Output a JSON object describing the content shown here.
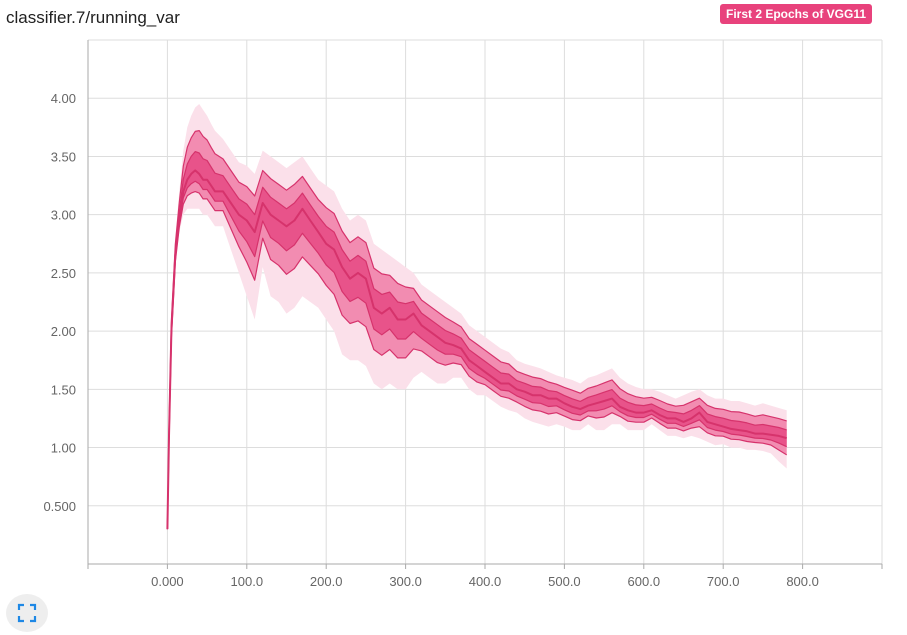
{
  "chart_title": "classifier.7/running_var",
  "run_tag": "First 2 Epochs of VGG11",
  "colors": {
    "accent": "#e8427c",
    "band_outer": "#fbe0ea",
    "band_mid": "#f28cb1",
    "band_inner": "#e8538a",
    "line": "#d6336c",
    "grid": "#dddddd",
    "axis": "#aaaaaa"
  },
  "controls": {
    "fit_icon": "fit-to-data-icon"
  },
  "chart_data": {
    "type": "area",
    "title": "classifier.7/running_var",
    "xlabel": "",
    "ylabel": "",
    "xlim": [
      -100,
      900
    ],
    "ylim": [
      0,
      4.5
    ],
    "grid": true,
    "x_ticks": [
      "0.000",
      "100.0",
      "200.0",
      "300.0",
      "400.0",
      "500.0",
      "600.0",
      "700.0",
      "800.0"
    ],
    "y_ticks": [
      "0.500",
      "1.00",
      "1.50",
      "2.00",
      "2.50",
      "3.00",
      "3.50",
      "4.00"
    ],
    "x_tick_values": [
      0,
      100,
      200,
      300,
      400,
      500,
      600,
      700,
      800
    ],
    "y_tick_values": [
      0.5,
      1.0,
      1.5,
      2.0,
      2.5,
      3.0,
      3.5,
      4.0
    ],
    "x": [
      0,
      2,
      5,
      10,
      15,
      20,
      25,
      30,
      35,
      40,
      45,
      50,
      55,
      60,
      70,
      80,
      90,
      100,
      110,
      120,
      130,
      140,
      150,
      160,
      170,
      180,
      190,
      200,
      210,
      220,
      230,
      240,
      250,
      260,
      270,
      280,
      290,
      300,
      310,
      320,
      330,
      340,
      350,
      360,
      370,
      380,
      390,
      400,
      410,
      420,
      430,
      440,
      450,
      460,
      470,
      480,
      490,
      500,
      510,
      520,
      530,
      540,
      550,
      560,
      570,
      580,
      590,
      600,
      610,
      620,
      630,
      640,
      650,
      660,
      670,
      680,
      690,
      700,
      710,
      720,
      730,
      740,
      750,
      760,
      770,
      780
    ],
    "series": [
      {
        "values": [
          0.3,
          1.0,
          1.9,
          2.55,
          2.85,
          3.0,
          3.05,
          3.05,
          3.05,
          3.05,
          3.0,
          3.0,
          2.95,
          2.9,
          2.9,
          2.7,
          2.5,
          2.3,
          2.1,
          2.55,
          2.3,
          2.25,
          2.15,
          2.2,
          2.3,
          2.25,
          2.2,
          2.1,
          2.0,
          1.8,
          1.75,
          1.75,
          1.7,
          1.55,
          1.5,
          1.55,
          1.5,
          1.5,
          1.6,
          1.65,
          1.6,
          1.55,
          1.55,
          1.6,
          1.6,
          1.5,
          1.45,
          1.45,
          1.4,
          1.35,
          1.32,
          1.3,
          1.25,
          1.22,
          1.2,
          1.18,
          1.2,
          1.18,
          1.15,
          1.15,
          1.2,
          1.15,
          1.15,
          1.2,
          1.2,
          1.15,
          1.15,
          1.15,
          1.2,
          1.15,
          1.1,
          1.1,
          1.08,
          1.1,
          1.08,
          1.05,
          1.02,
          1.03,
          1.0,
          1.0,
          0.98,
          0.98,
          0.97,
          0.95,
          0.88,
          0.82
        ]
      },
      {
        "values": [
          0.3,
          1.1,
          2.0,
          2.65,
          2.95,
          3.2,
          3.3,
          3.35,
          3.38,
          3.35,
          3.3,
          3.3,
          3.25,
          3.2,
          3.2,
          3.1,
          3.0,
          2.95,
          2.85,
          3.1,
          3.0,
          2.95,
          2.9,
          2.95,
          3.05,
          2.95,
          2.85,
          2.75,
          2.7,
          2.55,
          2.45,
          2.5,
          2.45,
          2.2,
          2.15,
          2.2,
          2.1,
          2.1,
          2.15,
          2.05,
          2.0,
          1.95,
          1.9,
          1.88,
          1.85,
          1.75,
          1.7,
          1.65,
          1.6,
          1.55,
          1.55,
          1.5,
          1.48,
          1.45,
          1.45,
          1.42,
          1.42,
          1.38,
          1.35,
          1.33,
          1.36,
          1.38,
          1.4,
          1.42,
          1.35,
          1.32,
          1.3,
          1.3,
          1.32,
          1.28,
          1.25,
          1.25,
          1.22,
          1.25,
          1.3,
          1.22,
          1.2,
          1.18,
          1.16,
          1.15,
          1.14,
          1.12,
          1.12,
          1.11,
          1.1,
          1.08
        ]
      },
      {
        "values": [
          0.3,
          1.2,
          2.15,
          2.8,
          3.2,
          3.55,
          3.75,
          3.85,
          3.92,
          3.95,
          3.9,
          3.85,
          3.78,
          3.72,
          3.65,
          3.55,
          3.45,
          3.42,
          3.35,
          3.55,
          3.5,
          3.45,
          3.4,
          3.45,
          3.5,
          3.4,
          3.3,
          3.25,
          3.2,
          3.05,
          2.95,
          3.0,
          2.95,
          2.75,
          2.7,
          2.65,
          2.6,
          2.55,
          2.5,
          2.4,
          2.35,
          2.3,
          2.25,
          2.2,
          2.15,
          2.05,
          2.0,
          1.95,
          1.9,
          1.85,
          1.82,
          1.75,
          1.72,
          1.7,
          1.68,
          1.65,
          1.62,
          1.6,
          1.58,
          1.55,
          1.6,
          1.62,
          1.65,
          1.68,
          1.6,
          1.55,
          1.52,
          1.5,
          1.5,
          1.48,
          1.45,
          1.42,
          1.45,
          1.48,
          1.5,
          1.45,
          1.42,
          1.42,
          1.4,
          1.4,
          1.38,
          1.36,
          1.38,
          1.36,
          1.34,
          1.32
        ]
      }
    ]
  }
}
